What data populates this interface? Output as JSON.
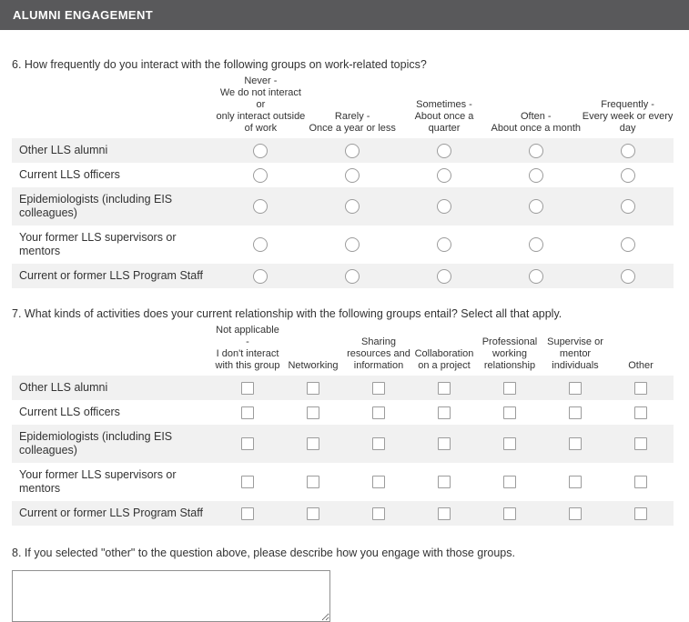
{
  "header": {
    "title": "ALUMNI ENGAGEMENT"
  },
  "questions": {
    "q6": {
      "label": "6. How frequently do you interact with the following groups on work-related topics?",
      "type": "radio",
      "columns": [
        "Never -\nWe do not interact or\nonly interact outside\nof work",
        "Rarely -\nOnce a year or less",
        "Sometimes -\nAbout once a quarter",
        "Often -\nAbout once a month",
        "Frequently -\nEvery week or every\nday"
      ],
      "rows": [
        "Other LLS alumni",
        "Current LLS officers",
        "Epidemiologists (including EIS colleagues)",
        "Your former LLS supervisors or mentors",
        "Current or former LLS Program Staff"
      ]
    },
    "q7": {
      "label": "7. What kinds of activities does your current relationship with the following groups entail? Select all that apply.",
      "type": "checkbox",
      "columns": [
        "Not applicable -\nI don't interact\nwith this group",
        "Networking",
        "Sharing\nresources and\ninformation",
        "Collaboration\non a project",
        "Professional\nworking\nrelationship",
        "Supervise or\nmentor\nindividuals",
        "Other"
      ],
      "rows": [
        "Other LLS alumni",
        "Current LLS officers",
        "Epidemiologists (including EIS colleagues)",
        "Your former LLS supervisors or mentors",
        "Current or former LLS Program Staff"
      ]
    },
    "q8": {
      "label": "8. If you selected \"other\" to the question above, please describe how you engage with those groups.",
      "value": ""
    }
  },
  "colors": {
    "header_bar": "#59595b",
    "row_stripe": "#f1f1f1",
    "text": "#333333",
    "control_border": "#9c9c9c"
  }
}
